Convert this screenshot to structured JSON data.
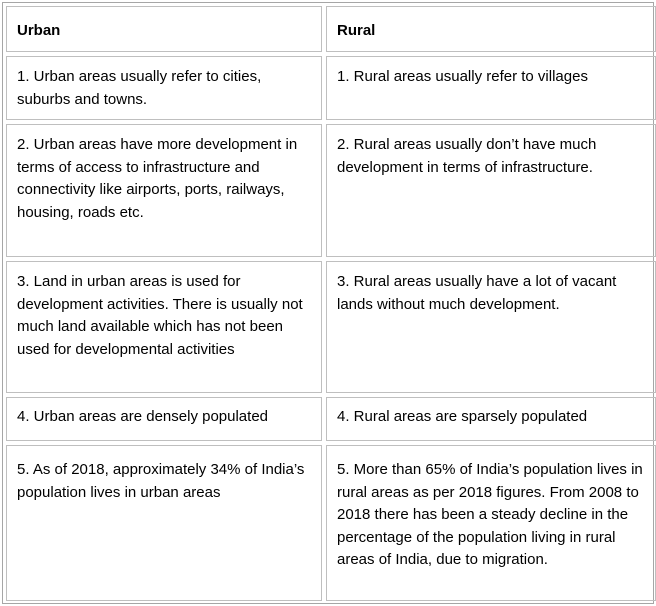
{
  "headers": [
    "Urban",
    "Rural"
  ],
  "rows": [
    {
      "urban": "1. Urban areas usually refer to cities, suburbs and towns.",
      "rural": "1. Rural areas usually refer to villages"
    },
    {
      "urban": "2. Urban areas have more development in terms of access to infrastructure and connectivity like airports, ports, railways, housing, roads etc.",
      "rural": "2. Rural areas usually don’t have much development in terms of infrastructure."
    },
    {
      "urban": "3. Land in urban areas is used for development activities. There is usually not much land available which has not been used for developmental activities",
      "rural": "3. Rural areas usually have a lot of vacant lands without much development."
    },
    {
      "urban": "4. Urban areas are densely populated",
      "rural": "4. Rural areas are sparsely populated"
    },
    {
      "urban": "5. As of 2018, approximately 34% of India’s population lives in urban areas",
      "rural": "5. More than 65% of India’s population lives in rural areas as per 2018 figures. From 2008 to 2018 there has been a steady decline in the percentage of the population living in rural areas of India, due to migration."
    }
  ]
}
